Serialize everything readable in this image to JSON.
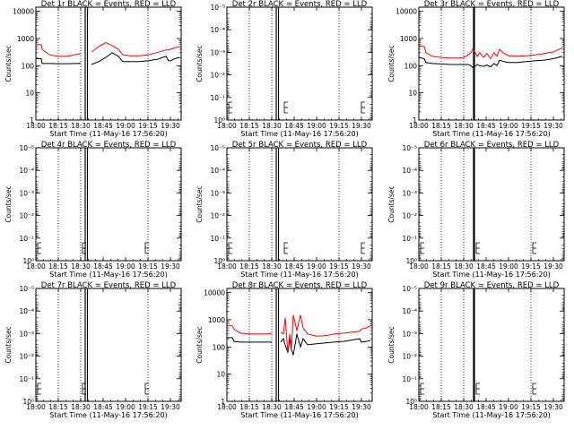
{
  "chart_data": [
    {
      "type": "line",
      "panel_index": 0,
      "title": "Det 1r BLACK = Events, RED = LLD",
      "xlabel": "Start Time (11-May-16 17:56:20)",
      "ylabel": "Counts/sec",
      "xticks": [
        "18:00",
        "18:15",
        "18:30",
        "18:45",
        "19:00",
        "19:15",
        "19:30"
      ],
      "yticks": [
        "1",
        "10",
        "100",
        "1000",
        "10000"
      ],
      "ylim_log10": [
        0,
        4.15
      ],
      "x_range_hours": [
        18.0,
        19.62
      ],
      "vertical_dotted_lines_hours": [
        18.25,
        18.5,
        19.25
      ],
      "vertical_solid_lines_hours": [
        18.55,
        18.575
      ],
      "gap_hours": [
        18.55,
        18.575
      ],
      "series": [
        {
          "name": "Events",
          "color": "#000000",
          "x": [
            18.0,
            18.06,
            18.07,
            18.15,
            18.25,
            18.35,
            18.45,
            18.5,
            18.55,
            18.575,
            18.62,
            18.7,
            18.78,
            18.85,
            18.92,
            18.97,
            19.05,
            19.15,
            19.25,
            19.35,
            19.45,
            19.48,
            19.5,
            19.55,
            19.6
          ],
          "y": [
            180,
            180,
            120,
            120,
            118,
            118,
            120,
            120,
            null,
            null,
            110,
            140,
            200,
            300,
            220,
            140,
            140,
            140,
            150,
            170,
            220,
            150,
            150,
            180,
            200
          ]
        },
        {
          "name": "LLD",
          "color": "#ff0000",
          "x": [
            18.0,
            18.06,
            18.07,
            18.15,
            18.25,
            18.35,
            18.45,
            18.5,
            18.55,
            18.575,
            18.62,
            18.7,
            18.78,
            18.85,
            18.92,
            18.97,
            19.05,
            19.15,
            19.25,
            19.35,
            19.45,
            19.48,
            19.5,
            19.55,
            19.6
          ],
          "y": [
            600,
            600,
            400,
            250,
            220,
            220,
            260,
            280,
            null,
            null,
            320,
            500,
            700,
            550,
            400,
            250,
            230,
            230,
            250,
            300,
            380,
            380,
            400,
            450,
            500
          ]
        }
      ],
      "annotations": []
    },
    {
      "type": "line",
      "panel_index": 1,
      "title": "Det 2r BLACK = Events, RED = LLD",
      "xlabel": "Start Time (11-May-16 17:56:20)",
      "ylabel": "Counts/sec",
      "xticks": [
        "18:00",
        "18:15",
        "18:30",
        "18:45",
        "19:00",
        "19:15",
        "19:30"
      ],
      "yticks": [
        "10⁰",
        "10⁻¹",
        "10⁻²",
        "10⁻³",
        "10⁻⁴",
        "10⁻⁵"
      ],
      "ylim_log10": [
        0,
        -5
      ],
      "x_range_hours": [
        18.0,
        19.62
      ],
      "vertical_dotted_lines_hours": [
        18.25,
        18.5,
        19.25
      ],
      "vertical_solid_lines_hours": [
        18.55,
        18.575
      ],
      "gap_hours": [
        18.55,
        18.575
      ],
      "series": [],
      "annotations": [
        {
          "type": "bracket",
          "at_hours": 18.0
        },
        {
          "type": "bracket",
          "at_hours": 18.62
        },
        {
          "type": "bracket",
          "at_hours": 19.48
        }
      ]
    },
    {
      "type": "line",
      "panel_index": 2,
      "title": "Det 3r BLACK = Events, RED = LLD",
      "xlabel": "Start Time (11-May-16 17:56:20)",
      "ylabel": "Counts/sec",
      "xticks": [
        "18:00",
        "18:15",
        "18:30",
        "18:45",
        "19:00",
        "19:15",
        "19:30"
      ],
      "yticks": [
        "1",
        "10",
        "100",
        "1000",
        "10000"
      ],
      "ylim_log10": [
        0,
        4.15
      ],
      "x_range_hours": [
        18.0,
        19.62
      ],
      "vertical_dotted_lines_hours": [
        18.25,
        18.5,
        19.25
      ],
      "vertical_solid_lines_hours": [
        18.615
      ],
      "gap_hours": null,
      "series": [
        {
          "name": "Events",
          "color": "#000000",
          "x": [
            18.0,
            18.06,
            18.08,
            18.15,
            18.25,
            18.35,
            18.45,
            18.5,
            18.55,
            18.58,
            18.6,
            18.62,
            18.65,
            18.68,
            18.72,
            18.76,
            18.8,
            18.84,
            18.87,
            18.9,
            18.95,
            19.0,
            19.1,
            19.2,
            19.3,
            19.4,
            19.5,
            19.55,
            19.6
          ],
          "y": [
            200,
            180,
            130,
            120,
            115,
            110,
            110,
            110,
            110,
            100,
            85,
            90,
            110,
            100,
            95,
            105,
            90,
            120,
            100,
            160,
            140,
            130,
            130,
            140,
            150,
            160,
            180,
            200,
            220
          ]
        },
        {
          "name": "LLD",
          "color": "#ff0000",
          "x": [
            18.0,
            18.06,
            18.08,
            18.15,
            18.25,
            18.35,
            18.45,
            18.5,
            18.55,
            18.58,
            18.6,
            18.62,
            18.65,
            18.68,
            18.72,
            18.76,
            18.8,
            18.84,
            18.87,
            18.9,
            18.95,
            19.0,
            19.1,
            19.2,
            19.3,
            19.4,
            19.5,
            19.55,
            19.6
          ],
          "y": [
            550,
            500,
            300,
            220,
            200,
            190,
            190,
            200,
            250,
            300,
            400,
            350,
            220,
            300,
            200,
            280,
            180,
            300,
            220,
            400,
            280,
            230,
            220,
            230,
            250,
            280,
            320,
            380,
            450
          ]
        }
      ],
      "annotations": []
    },
    {
      "type": "line",
      "panel_index": 3,
      "title": "Det 4r BLACK = Events, RED = LLD",
      "xlabel": "Start Time (11-May-16 17:56:20)",
      "ylabel": "Counts/sec",
      "xticks": [
        "18:00",
        "18:15",
        "18:30",
        "18:45",
        "19:00",
        "19:15",
        "19:30"
      ],
      "yticks": [
        "10⁰",
        "10⁻¹",
        "10⁻²",
        "10⁻³",
        "10⁻⁴",
        "10⁻⁵"
      ],
      "ylim_log10": [
        0,
        -5
      ],
      "x_range_hours": [
        18.0,
        19.62
      ],
      "vertical_dotted_lines_hours": [
        18.25,
        18.5,
        19.25
      ],
      "vertical_solid_lines_hours": [
        18.55,
        18.575
      ],
      "gap_hours": [
        18.55,
        18.575
      ],
      "series": [],
      "annotations": [
        {
          "type": "bracket",
          "at_hours": 18.0
        },
        {
          "type": "bracket",
          "at_hours": 18.5
        },
        {
          "type": "bracket",
          "at_hours": 19.2
        }
      ]
    },
    {
      "type": "line",
      "panel_index": 4,
      "title": "Det 5r BLACK = Events, RED = LLD",
      "xlabel": "Start Time (11-May-16 17:56:20)",
      "ylabel": "Counts/sec",
      "xticks": [
        "18:00",
        "18:15",
        "18:30",
        "18:45",
        "19:00",
        "19:15",
        "19:30"
      ],
      "yticks": [
        "10⁰",
        "10⁻¹",
        "10⁻²",
        "10⁻³",
        "10⁻⁴",
        "10⁻⁵"
      ],
      "ylim_log10": [
        0,
        -5
      ],
      "x_range_hours": [
        18.0,
        19.62
      ],
      "vertical_dotted_lines_hours": [
        18.25,
        18.5,
        19.25
      ],
      "vertical_solid_lines_hours": [
        18.55,
        18.575
      ],
      "gap_hours": [
        18.55,
        18.575
      ],
      "series": [],
      "annotations": [
        {
          "type": "bracket",
          "at_hours": 18.0
        },
        {
          "type": "bracket",
          "at_hours": 18.62
        },
        {
          "type": "bracket",
          "at_hours": 19.48
        }
      ]
    },
    {
      "type": "line",
      "panel_index": 5,
      "title": "Det 6r BLACK = Events, RED = LLD",
      "xlabel": "Start Time (11-May-16 17:56:20)",
      "ylabel": "Counts/sec",
      "xticks": [
        "18:00",
        "18:15",
        "18:30",
        "18:45",
        "19:00",
        "19:15",
        "19:30"
      ],
      "yticks": [
        "10⁰",
        "10⁻¹",
        "10⁻²",
        "10⁻³",
        "10⁻⁴",
        "10⁻⁵"
      ],
      "ylim_log10": [
        0,
        -5
      ],
      "x_range_hours": [
        18.0,
        19.62
      ],
      "vertical_dotted_lines_hours": [
        18.25,
        18.5,
        19.25
      ],
      "vertical_solid_lines_hours": [
        18.615
      ],
      "gap_hours": null,
      "series": [],
      "annotations": [
        {
          "type": "bracket",
          "at_hours": 18.0
        },
        {
          "type": "bracket",
          "at_hours": 18.62
        },
        {
          "type": "bracket",
          "at_hours": 19.25
        }
      ]
    },
    {
      "type": "line",
      "panel_index": 6,
      "title": "Det 7r BLACK = Events, RED = LLD",
      "xlabel": "Start Time (11-May-16 17:56:20)",
      "ylabel": "Counts/sec",
      "xticks": [
        "18:00",
        "18:15",
        "18:30",
        "18:45",
        "19:00",
        "19:15",
        "19:30"
      ],
      "yticks": [
        "10⁰",
        "10⁻¹",
        "10⁻²",
        "10⁻³",
        "10⁻⁴",
        "10⁻⁵"
      ],
      "ylim_log10": [
        0,
        -5
      ],
      "x_range_hours": [
        18.0,
        19.62
      ],
      "vertical_dotted_lines_hours": [
        18.25,
        18.5,
        19.25
      ],
      "vertical_solid_lines_hours": [
        18.55,
        18.575
      ],
      "gap_hours": [
        18.55,
        18.575
      ],
      "series": [],
      "annotations": [
        {
          "type": "bracket",
          "at_hours": 18.0
        },
        {
          "type": "bracket",
          "at_hours": 18.5
        },
        {
          "type": "bracket",
          "at_hours": 19.2
        }
      ]
    },
    {
      "type": "line",
      "panel_index": 7,
      "title": "Det 8r BLACK = Events, RED = LLD",
      "xlabel": "Start Time (11-May-16 17:56:20)",
      "ylabel": "Counts/sec",
      "xticks": [
        "18:00",
        "18:15",
        "18:30",
        "18:45",
        "19:00",
        "19:15",
        "19:30"
      ],
      "yticks": [
        "1",
        "10",
        "100",
        "1000",
        "10000"
      ],
      "ylim_log10": [
        0,
        4.15
      ],
      "x_range_hours": [
        18.0,
        19.62
      ],
      "vertical_dotted_lines_hours": [
        18.25,
        18.5,
        19.25
      ],
      "vertical_solid_lines_hours": [
        18.55,
        18.575
      ],
      "gap_hours": [
        18.55,
        18.575
      ],
      "series": [
        {
          "name": "Events",
          "color": "#000000",
          "x": [
            18.0,
            18.06,
            18.08,
            18.15,
            18.25,
            18.35,
            18.45,
            18.5,
            18.55,
            18.575,
            18.6,
            18.63,
            18.65,
            18.68,
            18.7,
            18.72,
            18.74,
            18.78,
            18.82,
            18.85,
            18.9,
            19.0,
            19.1,
            19.2,
            19.3,
            19.4,
            19.48,
            19.5,
            19.55,
            19.6
          ],
          "y": [
            220,
            220,
            160,
            150,
            150,
            150,
            150,
            150,
            null,
            null,
            150,
            200,
            120,
            60,
            200,
            80,
            50,
            300,
            100,
            200,
            120,
            130,
            140,
            150,
            160,
            180,
            200,
            150,
            160,
            170
          ]
        },
        {
          "name": "LLD",
          "color": "#ff0000",
          "x": [
            18.0,
            18.06,
            18.08,
            18.15,
            18.25,
            18.35,
            18.45,
            18.5,
            18.55,
            18.575,
            18.6,
            18.63,
            18.65,
            18.68,
            18.7,
            18.72,
            18.74,
            18.78,
            18.82,
            18.85,
            18.9,
            19.0,
            19.1,
            19.2,
            19.3,
            19.4,
            19.48,
            19.5,
            19.55,
            19.6
          ],
          "y": [
            600,
            600,
            450,
            320,
            300,
            300,
            300,
            320,
            null,
            null,
            350,
            300,
            1200,
            60,
            300,
            100,
            1500,
            400,
            1500,
            500,
            300,
            250,
            260,
            300,
            320,
            350,
            380,
            450,
            500,
            600
          ]
        }
      ],
      "annotations": []
    },
    {
      "type": "line",
      "panel_index": 8,
      "title": "Det 9r BLACK = Events, RED = LLD",
      "xlabel": "Start Time (11-May-16 17:56:20)",
      "ylabel": "Counts/sec",
      "xticks": [
        "18:00",
        "18:15",
        "18:30",
        "18:45",
        "19:00",
        "19:15",
        "19:30"
      ],
      "yticks": [
        "10⁰",
        "10⁻¹",
        "10⁻²",
        "10⁻³",
        "10⁻⁴",
        "10⁻⁵"
      ],
      "ylim_log10": [
        0,
        -5
      ],
      "x_range_hours": [
        18.0,
        19.62
      ],
      "vertical_dotted_lines_hours": [
        18.25,
        18.5,
        19.25
      ],
      "vertical_solid_lines_hours": [
        18.615
      ],
      "gap_hours": null,
      "series": [],
      "annotations": [
        {
          "type": "bracket",
          "at_hours": 18.0
        },
        {
          "type": "bracket",
          "at_hours": 18.62
        },
        {
          "type": "bracket",
          "at_hours": 19.25
        }
      ]
    }
  ]
}
